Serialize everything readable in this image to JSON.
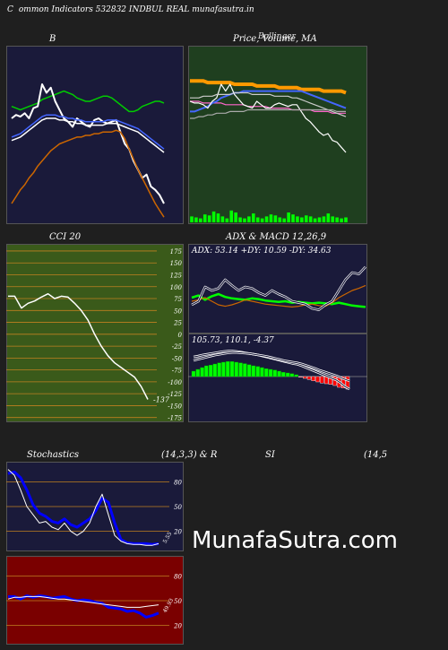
{
  "header": {
    "left_char": "C",
    "text": "ommon  Indicators 532832  INDBUL  REAL  munafasutra.in"
  },
  "watermark": "MunafaSutra.com",
  "colors": {
    "navy": "#1a1a3a",
    "forest": "#1f3f1f",
    "olive": "#3a5a1a",
    "maroon": "#7a0000"
  },
  "chart_data": [
    {
      "id": "bollinger",
      "type": "line",
      "title": "B",
      "series": [
        {
          "color": "#00cc00",
          "values": [
            0.67,
            0.66,
            0.65,
            0.66,
            0.67,
            0.68,
            0.69,
            0.71,
            0.72,
            0.73,
            0.74,
            0.75,
            0.76,
            0.75,
            0.74,
            0.72,
            0.71,
            0.7,
            0.7,
            0.71,
            0.72,
            0.73,
            0.73,
            0.72,
            0.7,
            0.68,
            0.66,
            0.64,
            0.64,
            0.65,
            0.67,
            0.68,
            0.69,
            0.7,
            0.7,
            0.69
          ]
        },
        {
          "color": "#ffffff",
          "values": [
            0.6,
            0.62,
            0.61,
            0.63,
            0.6,
            0.66,
            0.67,
            0.8,
            0.75,
            0.78,
            0.7,
            0.65,
            0.6,
            0.58,
            0.55,
            0.6,
            0.58,
            0.56,
            0.55,
            0.59,
            0.6,
            0.58,
            0.57,
            0.58,
            0.59,
            0.52,
            0.45,
            0.42,
            0.35,
            0.3,
            0.25,
            0.27,
            0.2,
            0.18,
            0.15,
            0.1
          ]
        },
        {
          "color": "#4466ff",
          "values": [
            0.49,
            0.5,
            0.51,
            0.53,
            0.55,
            0.57,
            0.59,
            0.61,
            0.62,
            0.62,
            0.62,
            0.61,
            0.61,
            0.6,
            0.6,
            0.59,
            0.59,
            0.58,
            0.58,
            0.58,
            0.58,
            0.58,
            0.59,
            0.59,
            0.59,
            0.58,
            0.57,
            0.56,
            0.55,
            0.54,
            0.52,
            0.5,
            0.48,
            0.46,
            0.44,
            0.42
          ]
        },
        {
          "color": "#ffffff",
          "values": [
            0.47,
            0.48,
            0.49,
            0.51,
            0.53,
            0.55,
            0.57,
            0.59,
            0.6,
            0.6,
            0.6,
            0.59,
            0.59,
            0.58,
            0.58,
            0.57,
            0.57,
            0.56,
            0.56,
            0.56,
            0.56,
            0.56,
            0.57,
            0.57,
            0.57,
            0.56,
            0.55,
            0.54,
            0.53,
            0.52,
            0.5,
            0.48,
            0.46,
            0.44,
            0.42,
            0.4
          ]
        },
        {
          "color": "#cc6600",
          "values": [
            0.1,
            0.14,
            0.18,
            0.21,
            0.25,
            0.28,
            0.32,
            0.35,
            0.38,
            0.41,
            0.43,
            0.45,
            0.46,
            0.47,
            0.48,
            0.49,
            0.49,
            0.5,
            0.5,
            0.51,
            0.51,
            0.52,
            0.52,
            0.52,
            0.53,
            0.52,
            0.48,
            0.42,
            0.36,
            0.3,
            0.25,
            0.2,
            0.15,
            0.1,
            0.06,
            0.02
          ]
        }
      ]
    },
    {
      "id": "price",
      "type": "line",
      "title": "Price,  Volume,  MA",
      "overlap_text": "Bollinger",
      "series": [
        {
          "color": "#ff9900",
          "values": [
            0.82,
            0.82,
            0.82,
            0.82,
            0.81,
            0.81,
            0.81,
            0.81,
            0.81,
            0.81,
            0.8,
            0.8,
            0.8,
            0.8,
            0.8,
            0.79,
            0.79,
            0.79,
            0.79,
            0.79,
            0.78,
            0.78,
            0.78,
            0.78,
            0.78,
            0.77,
            0.77,
            0.77,
            0.77,
            0.77,
            0.76,
            0.76,
            0.76,
            0.76,
            0.76,
            0.75
          ]
        },
        {
          "color": "#ff66cc",
          "values": [
            0.7,
            0.7,
            0.7,
            0.69,
            0.69,
            0.69,
            0.69,
            0.69,
            0.68,
            0.68,
            0.68,
            0.68,
            0.68,
            0.67,
            0.67,
            0.67,
            0.67,
            0.67,
            0.66,
            0.66,
            0.66,
            0.66,
            0.66,
            0.65,
            0.65,
            0.65,
            0.65,
            0.65,
            0.64,
            0.64,
            0.64,
            0.64,
            0.63,
            0.63,
            0.63,
            0.63
          ]
        },
        {
          "color": "#4466ff",
          "values": [
            0.64,
            0.64,
            0.65,
            0.66,
            0.67,
            0.69,
            0.7,
            0.72,
            0.73,
            0.74,
            0.75,
            0.75,
            0.76,
            0.76,
            0.76,
            0.76,
            0.76,
            0.76,
            0.76,
            0.76,
            0.76,
            0.76,
            0.76,
            0.76,
            0.76,
            0.76,
            0.75,
            0.74,
            0.73,
            0.72,
            0.71,
            0.7,
            0.69,
            0.68,
            0.67,
            0.66
          ]
        },
        {
          "color": "#ffffff",
          "values": [
            0.7,
            0.69,
            0.69,
            0.68,
            0.66,
            0.7,
            0.72,
            0.8,
            0.76,
            0.8,
            0.74,
            0.71,
            0.68,
            0.67,
            0.66,
            0.7,
            0.68,
            0.66,
            0.66,
            0.68,
            0.69,
            0.68,
            0.67,
            0.68,
            0.68,
            0.64,
            0.6,
            0.58,
            0.55,
            0.52,
            0.5,
            0.51,
            0.47,
            0.46,
            0.43,
            0.4
          ]
        },
        {
          "color": "#cccccc",
          "values": [
            0.72,
            0.72,
            0.72,
            0.73,
            0.73,
            0.73,
            0.74,
            0.74,
            0.74,
            0.74,
            0.75,
            0.75,
            0.75,
            0.75,
            0.74,
            0.74,
            0.74,
            0.74,
            0.74,
            0.73,
            0.73,
            0.73,
            0.73,
            0.72,
            0.72,
            0.71,
            0.7,
            0.69,
            0.68,
            0.67,
            0.66,
            0.65,
            0.64,
            0.63,
            0.62,
            0.61
          ]
        },
        {
          "color": "#aaaaaa",
          "values": [
            0.6,
            0.6,
            0.61,
            0.61,
            0.62,
            0.62,
            0.63,
            0.63,
            0.63,
            0.64,
            0.64,
            0.64,
            0.64,
            0.65,
            0.65,
            0.65,
            0.65,
            0.65,
            0.65,
            0.65,
            0.65,
            0.65,
            0.65,
            0.65,
            0.65,
            0.65,
            0.65,
            0.65,
            0.65,
            0.65,
            0.65,
            0.65,
            0.65,
            0.64,
            0.64,
            0.64
          ]
        }
      ],
      "volume": [
        0.3,
        0.25,
        0.2,
        0.4,
        0.35,
        0.55,
        0.45,
        0.3,
        0.2,
        0.6,
        0.5,
        0.25,
        0.2,
        0.3,
        0.45,
        0.25,
        0.2,
        0.3,
        0.4,
        0.35,
        0.25,
        0.2,
        0.5,
        0.4,
        0.3,
        0.25,
        0.35,
        0.3,
        0.2,
        0.25,
        0.3,
        0.45,
        0.3,
        0.25,
        0.2,
        0.25
      ]
    },
    {
      "id": "cci",
      "type": "line",
      "title": "CCI 20",
      "yticks": [
        175,
        150,
        125,
        100,
        75,
        50,
        25,
        0,
        -25,
        -50,
        -75,
        -100,
        -125,
        -150,
        -175
      ],
      "ylim": [
        -185,
        190
      ],
      "value_label": "-137",
      "values": [
        80,
        80,
        55,
        65,
        70,
        78,
        85,
        75,
        80,
        78,
        65,
        50,
        30,
        0,
        -25,
        -45,
        -60,
        -70,
        -80,
        -90,
        -110,
        -137
      ]
    },
    {
      "id": "adx",
      "type": "line",
      "title": "ADX  & MACD 12,26,9",
      "readout": "ADX: 53.14  +DY: 10.59 -DY: 34.63",
      "series": [
        {
          "color": "#00ff00",
          "width": 2.5,
          "values": [
            0.45,
            0.48,
            0.42,
            0.47,
            0.5,
            0.46,
            0.44,
            0.43,
            0.42,
            0.44,
            0.43,
            0.41,
            0.4,
            0.39,
            0.4,
            0.38,
            0.39,
            0.38,
            0.37,
            0.38,
            0.37,
            0.36,
            0.38,
            0.36,
            0.34,
            0.33,
            0.32
          ]
        },
        {
          "color": "#cc6600",
          "width": 1.2,
          "values": [
            0.4,
            0.42,
            0.45,
            0.4,
            0.35,
            0.33,
            0.35,
            0.38,
            0.42,
            0.4,
            0.38,
            0.36,
            0.35,
            0.34,
            0.33,
            0.32,
            0.33,
            0.35,
            0.36,
            0.34,
            0.33,
            0.38,
            0.45,
            0.5,
            0.55,
            0.58,
            0.62
          ]
        },
        {
          "color": "#ffffff",
          "width": 1.2,
          "values": [
            0.35,
            0.4,
            0.6,
            0.55,
            0.58,
            0.7,
            0.62,
            0.55,
            0.6,
            0.58,
            0.52,
            0.48,
            0.55,
            0.5,
            0.46,
            0.4,
            0.38,
            0.36,
            0.3,
            0.28,
            0.35,
            0.4,
            0.55,
            0.7,
            0.8,
            0.78,
            0.88
          ]
        }
      ]
    },
    {
      "id": "macd",
      "type": "bar",
      "readout": "105.73,  110.1,  -4.37",
      "hist": [
        0.15,
        0.2,
        0.25,
        0.3,
        0.32,
        0.35,
        0.38,
        0.4,
        0.42,
        0.42,
        0.4,
        0.38,
        0.36,
        0.33,
        0.3,
        0.28,
        0.25,
        0.22,
        0.2,
        0.18,
        0.15,
        0.12,
        0.1,
        0.08,
        0.05,
        -0.02,
        -0.05,
        -0.08,
        -0.12,
        -0.15,
        -0.18,
        -0.2,
        -0.22,
        -0.25,
        -0.3,
        -0.32,
        -0.35
      ],
      "series": [
        {
          "color": "#ffffff",
          "values": [
            0.55,
            0.57,
            0.6,
            0.62,
            0.64,
            0.66,
            0.68,
            0.7,
            0.71,
            0.71,
            0.7,
            0.68,
            0.66,
            0.64,
            0.62,
            0.6,
            0.57,
            0.54,
            0.51,
            0.48,
            0.45,
            0.42,
            0.39,
            0.36,
            0.34,
            0.3,
            0.25,
            0.2,
            0.15,
            0.1,
            0.05,
            0.0,
            -0.05,
            -0.1,
            -0.18,
            -0.28,
            -0.35
          ]
        },
        {
          "color": "#ffffff",
          "values": [
            0.45,
            0.48,
            0.51,
            0.54,
            0.57,
            0.6,
            0.62,
            0.64,
            0.66,
            0.67,
            0.67,
            0.66,
            0.65,
            0.64,
            0.62,
            0.6,
            0.58,
            0.56,
            0.53,
            0.5,
            0.47,
            0.44,
            0.42,
            0.4,
            0.38,
            0.35,
            0.31,
            0.27,
            0.23,
            0.18,
            0.14,
            0.1,
            0.06,
            0.02,
            -0.03,
            -0.08,
            -0.12
          ]
        }
      ]
    },
    {
      "id": "stoch",
      "type": "line",
      "title_left": "Stochastics",
      "title_right": "(14,3,3) & R",
      "yticks": [
        80,
        50,
        20
      ],
      "ylim": [
        0,
        100
      ],
      "value_label": "5.55",
      "series": [
        {
          "color": "#0000ff",
          "width": 3,
          "values": [
            90,
            92,
            85,
            70,
            52,
            42,
            38,
            32,
            30,
            35,
            28,
            25,
            30,
            35,
            45,
            60,
            55,
            30,
            10,
            6,
            5,
            5,
            5,
            4,
            5
          ]
        },
        {
          "color": "#ffffff",
          "width": 1,
          "values": [
            95,
            88,
            70,
            50,
            40,
            30,
            32,
            25,
            22,
            30,
            20,
            15,
            20,
            30,
            50,
            65,
            40,
            15,
            8,
            5,
            4,
            4,
            3,
            3,
            5
          ]
        }
      ]
    },
    {
      "id": "rsi_strip",
      "type": "line",
      "yticks": [
        80,
        50,
        20
      ],
      "ylim": [
        0,
        100
      ],
      "value_label": "49.93",
      "series": [
        {
          "color": "#0000ff",
          "width": 3,
          "values": [
            55,
            55,
            52,
            56,
            54,
            56,
            55,
            53,
            54,
            55,
            52,
            50,
            51,
            50,
            48,
            47,
            42,
            41,
            40,
            37,
            38,
            35,
            30,
            32,
            35
          ]
        },
        {
          "color": "#ffffff",
          "width": 1,
          "values": [
            52,
            54,
            54,
            55,
            55,
            55,
            54,
            53,
            52,
            52,
            51,
            50,
            49,
            48,
            47,
            46,
            45,
            44,
            43,
            42,
            42,
            42,
            43,
            44,
            45
          ]
        }
      ]
    },
    {
      "id": "rsi",
      "type": "line",
      "title_left": "SI",
      "title_right": "(14,5"
    }
  ]
}
